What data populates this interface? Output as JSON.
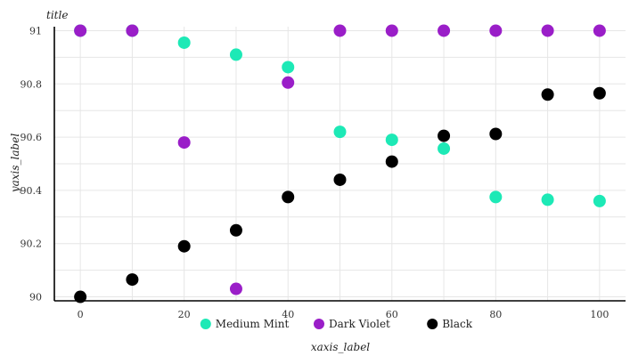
{
  "chart_data": {
    "type": "scatter",
    "title": "title",
    "xlabel": "xaxis_label",
    "ylabel": "yaxis_label",
    "xlim": [
      -5,
      105
    ],
    "ylim": [
      89.985,
      91.015
    ],
    "x_ticks": [
      0,
      20,
      40,
      60,
      80,
      100
    ],
    "y_ticks": [
      90.0,
      90.2,
      90.4,
      90.6,
      90.8,
      91.0
    ],
    "y_tick_labels": [
      "90",
      "90.2",
      "90.4",
      "90.6",
      "90.8",
      "91"
    ],
    "grid": true,
    "legend_position": "bottom",
    "series": [
      {
        "name": "Medium Mint",
        "color": "#1de9b6",
        "x": [
          0,
          10,
          20,
          30,
          40,
          50,
          60,
          70,
          80,
          90,
          100
        ],
        "y": [
          91.0,
          91.0,
          90.955,
          90.91,
          90.863,
          90.62,
          90.59,
          90.557,
          90.375,
          90.365,
          90.36
        ]
      },
      {
        "name": "Dark Violet",
        "color": "#9a1ec8",
        "x": [
          0,
          10,
          20,
          30,
          40,
          50,
          60,
          70,
          80,
          90,
          100
        ],
        "y": [
          91.0,
          91.0,
          90.58,
          90.03,
          90.805,
          91.0,
          91.0,
          91.0,
          91.0,
          91.0,
          91.0
        ]
      },
      {
        "name": "Black",
        "color": "#000000",
        "x": [
          0,
          10,
          20,
          30,
          40,
          50,
          60,
          70,
          80,
          90,
          100
        ],
        "y": [
          90.0,
          90.065,
          90.19,
          90.25,
          90.375,
          90.44,
          90.508,
          90.605,
          90.612,
          90.76,
          90.765
        ]
      }
    ]
  }
}
